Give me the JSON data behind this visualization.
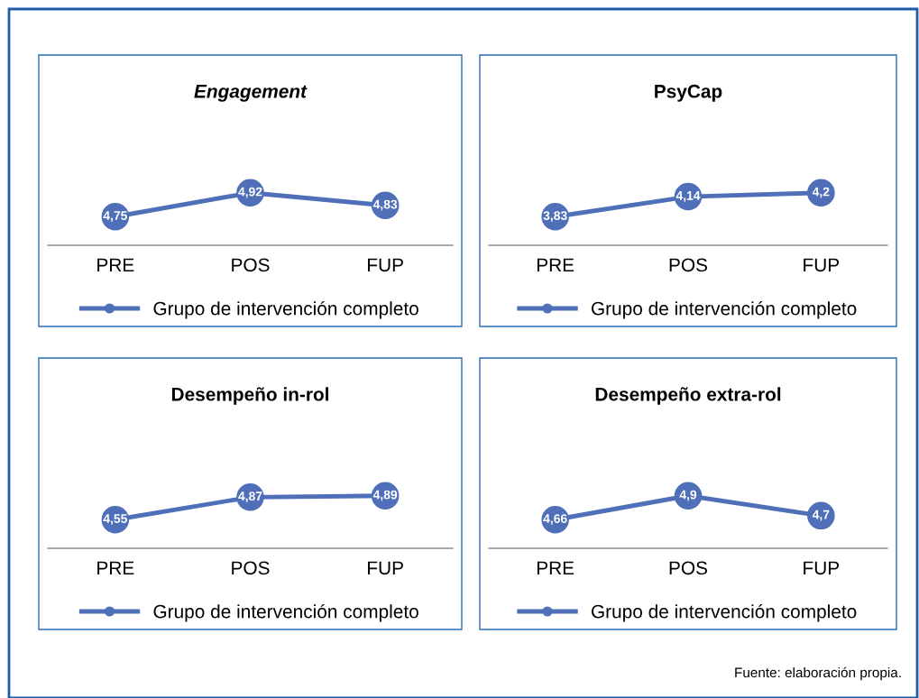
{
  "chart_data": [
    {
      "type": "line",
      "title": "Engagement",
      "categories": [
        "PRE",
        "POS",
        "FUP"
      ],
      "series": [
        {
          "name": "Grupo de intervención completo",
          "color": "#4f6fb8",
          "values": [
            4.75,
            4.92,
            4.83
          ],
          "value_labels": [
            "4,75",
            "4,92",
            "4,83"
          ]
        }
      ],
      "tick_labels": "x",
      "legend": "bottom",
      "marker": "circle",
      "line_style": "solid"
    },
    {
      "type": "line",
      "title": "PsyCap",
      "categories": [
        "PRE",
        "POS",
        "FUP"
      ],
      "series": [
        {
          "name": "Grupo de intervención completo",
          "color": "#4f6fb8",
          "values": [
            3.83,
            4.14,
            4.2
          ],
          "value_labels": [
            "3,83",
            "4,14",
            "4,2"
          ]
        }
      ],
      "tick_labels": "x",
      "legend": "bottom",
      "marker": "circle",
      "line_style": "solid"
    },
    {
      "type": "line",
      "title": "Desempeño in-rol",
      "categories": [
        "PRE",
        "POS",
        "FUP"
      ],
      "series": [
        {
          "name": "Grupo de intervención completo",
          "color": "#4f6fb8",
          "values": [
            4.55,
            4.87,
            4.89
          ],
          "value_labels": [
            "4,55",
            "4,87",
            "4,89"
          ]
        }
      ],
      "tick_labels": "x",
      "legend": "bottom",
      "marker": "circle",
      "line_style": "solid"
    },
    {
      "type": "line",
      "title": "Desempeño extra-rol",
      "categories": [
        "PRE",
        "POS",
        "FUP"
      ],
      "series": [
        {
          "name": "Grupo de intervención completo",
          "color": "#4f6fb8",
          "values": [
            4.66,
            4.9,
            4.7
          ],
          "value_labels": [
            "4,66",
            "4,9",
            "4,7"
          ]
        }
      ],
      "tick_labels": "x",
      "legend": "bottom",
      "marker": "circle",
      "line_style": "solid",
      "annotations": [
        "Fuente: elaboración propia."
      ]
    }
  ]
}
